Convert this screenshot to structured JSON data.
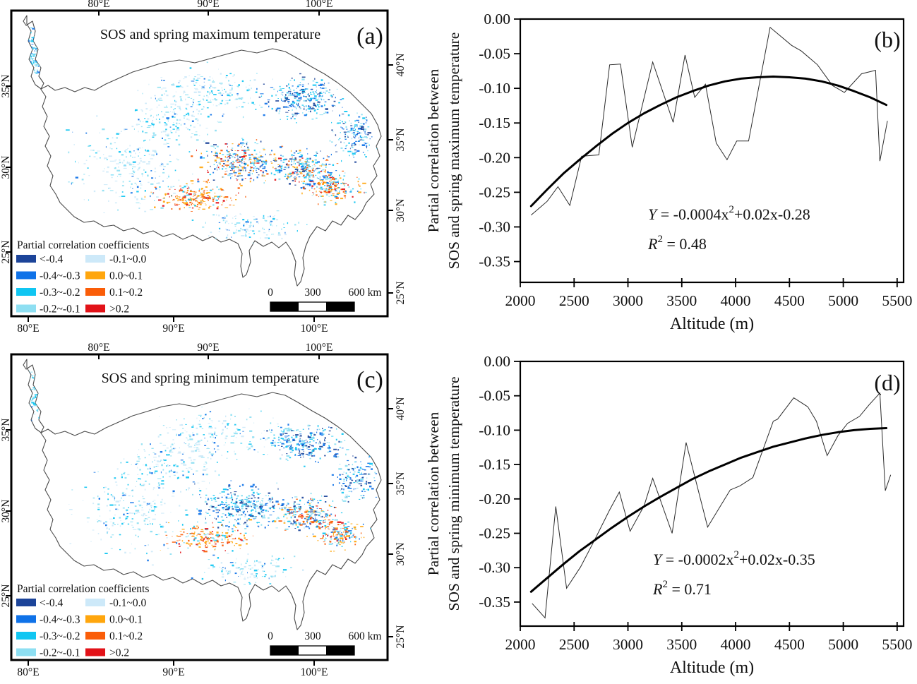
{
  "maps": {
    "shared": {
      "legend_title": "Partial correlation coefficients",
      "legend": [
        {
          "label": "<-0.4",
          "color": "#1c4499"
        },
        {
          "label": "-0.4~-0.3",
          "color": "#0f72e8"
        },
        {
          "label": "-0.3~-0.2",
          "color": "#10c6f2"
        },
        {
          "label": "-0.2~-0.1",
          "color": "#8edff2"
        },
        {
          "label": "-0.1~0.0",
          "color": "#cde9f9"
        },
        {
          "label": "0.0~0.1",
          "color": "#ffa60d"
        },
        {
          "label": "0.1~0.2",
          "color": "#fa5d08"
        },
        {
          "label": ">0.2",
          "color": "#e21218"
        }
      ],
      "scalebar_labels": [
        "0",
        "300",
        "600 km"
      ],
      "top_ticks": [
        "80°E",
        "90°E",
        "100°E"
      ],
      "bottom_ticks": [
        "80°E",
        "90°E",
        "100°E"
      ],
      "left_ticks": [
        "35°N",
        "30°N",
        "25°N"
      ],
      "right_ticks": [
        "40°N",
        "35°N",
        "30°N",
        "25°N"
      ],
      "outline_color": "#4a4a4a"
    },
    "panel_a": {
      "label": "(a)",
      "title": "SOS and spring maximum temperature"
    },
    "panel_c": {
      "label": "(c)",
      "title": "SOS and spring minimum temperature"
    }
  },
  "chart_data": [
    {
      "id": "b",
      "type": "line",
      "panel_label": "(b)",
      "xlabel": "Altitude (m)",
      "ylabel": [
        "Partial correlation between",
        "SOS and spring maximum temperature"
      ],
      "xlim": [
        2000,
        5560
      ],
      "ylim": [
        -0.38,
        0
      ],
      "xticks": [
        2000,
        2500,
        3000,
        3500,
        4000,
        4500,
        5000,
        5500
      ],
      "yticks": [
        "0.00",
        "-0.05",
        "-0.10",
        "-0.15",
        "-0.20",
        "-0.25",
        "-0.30",
        "-0.35"
      ],
      "equation": "Y = -0.0004x^2+0.02x-0.28",
      "r_squared": "R^2 = 0.48",
      "grid": false,
      "series": [
        {
          "name": "partial correlation profile",
          "x": [
            2100,
            2250,
            2350,
            2460,
            2570,
            2730,
            2830,
            2930,
            3040,
            3230,
            3420,
            3530,
            3620,
            3720,
            3820,
            3920,
            4010,
            4120,
            4320,
            4520,
            4610,
            4760,
            4900,
            5010,
            5170,
            5300,
            5340,
            5410
          ],
          "y": [
            -0.283,
            -0.263,
            -0.242,
            -0.269,
            -0.198,
            -0.196,
            -0.066,
            -0.065,
            -0.185,
            -0.062,
            -0.149,
            -0.052,
            -0.113,
            -0.094,
            -0.179,
            -0.203,
            -0.176,
            -0.176,
            -0.012,
            -0.038,
            -0.046,
            -0.066,
            -0.096,
            -0.106,
            -0.079,
            -0.074,
            -0.205,
            -0.147
          ]
        },
        {
          "name": "quadratic fit",
          "x": [
            2100,
            2250,
            2400,
            2550,
            2700,
            2850,
            3000,
            3150,
            3300,
            3450,
            3600,
            3750,
            3900,
            4050,
            4200,
            4350,
            4500,
            4650,
            4800,
            4950,
            5100,
            5250,
            5400
          ],
          "y": [
            -0.27,
            -0.246,
            -0.223,
            -0.203,
            -0.184,
            -0.166,
            -0.15,
            -0.136,
            -0.124,
            -0.113,
            -0.104,
            -0.096,
            -0.09,
            -0.086,
            -0.084,
            -0.083,
            -0.084,
            -0.086,
            -0.09,
            -0.096,
            -0.104,
            -0.113,
            -0.124
          ]
        }
      ]
    },
    {
      "id": "d",
      "type": "line",
      "panel_label": "(d)",
      "xlabel": "Altitude (m)",
      "ylabel": [
        "Partial correlation between",
        "SOS and spring minimum temperature"
      ],
      "xlim": [
        2000,
        5560
      ],
      "ylim": [
        -0.385,
        0
      ],
      "xticks": [
        2000,
        2500,
        3000,
        3500,
        4000,
        4500,
        5000,
        5500
      ],
      "yticks": [
        "0.00",
        "-0.05",
        "-0.10",
        "-0.15",
        "-0.20",
        "-0.25",
        "-0.30",
        "-0.35"
      ],
      "equation": "Y = -0.0002x^2+0.02x-0.35",
      "r_squared": "R^2 = 0.71",
      "grid": false,
      "series": [
        {
          "name": "partial correlation profile",
          "x": [
            2110,
            2230,
            2330,
            2430,
            2560,
            2690,
            2830,
            2920,
            3020,
            3150,
            3230,
            3410,
            3540,
            3740,
            3950,
            4040,
            4160,
            4350,
            4390,
            4540,
            4670,
            4750,
            4850,
            4950,
            5040,
            5150,
            5240,
            5340,
            5390,
            5440
          ],
          "y": [
            -0.352,
            -0.373,
            -0.211,
            -0.33,
            -0.299,
            -0.26,
            -0.216,
            -0.19,
            -0.247,
            -0.21,
            -0.17,
            -0.25,
            -0.118,
            -0.241,
            -0.187,
            -0.181,
            -0.169,
            -0.087,
            -0.084,
            -0.053,
            -0.066,
            -0.087,
            -0.137,
            -0.108,
            -0.09,
            -0.08,
            -0.063,
            -0.046,
            -0.188,
            -0.165
          ]
        },
        {
          "name": "quadratic fit",
          "x": [
            2100,
            2250,
            2400,
            2550,
            2700,
            2850,
            3000,
            3150,
            3300,
            3450,
            3600,
            3750,
            3900,
            4050,
            4200,
            4350,
            4500,
            4650,
            4800,
            4950,
            5100,
            5250,
            5400
          ],
          "y": [
            -0.335,
            -0.315,
            -0.295,
            -0.276,
            -0.259,
            -0.242,
            -0.226,
            -0.211,
            -0.197,
            -0.184,
            -0.171,
            -0.16,
            -0.15,
            -0.14,
            -0.132,
            -0.124,
            -0.118,
            -0.112,
            -0.107,
            -0.103,
            -0.1,
            -0.098,
            -0.097
          ]
        }
      ]
    }
  ]
}
